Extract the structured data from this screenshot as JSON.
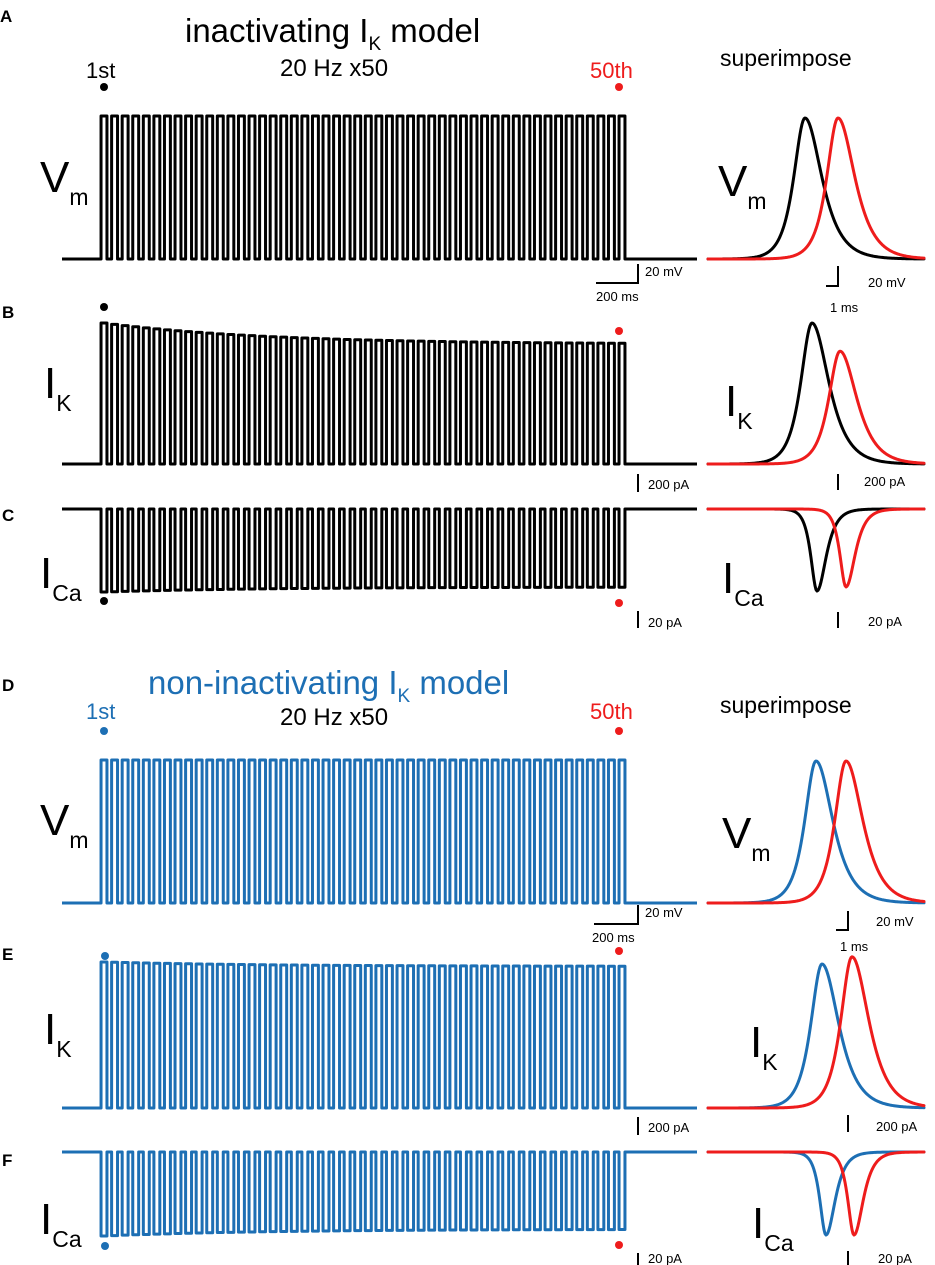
{
  "colors": {
    "black": "#000000",
    "red": "#ee1c1c",
    "blue": "#1d6fb4"
  },
  "chart_data": {
    "type": "line",
    "description_kind": "electrophysiology trace figure",
    "stimulus": {
      "frequency_hz": 20,
      "count": 50,
      "label": "20 Hz x50"
    },
    "sections": [
      {
        "id": "top",
        "title_main": "inactivating I",
        "title_sub": "K",
        "title_tail": " model",
        "stim_label": "20 Hz x50",
        "first_label": "1st",
        "last_label": "50th",
        "superimpose_label": "superimpose",
        "color": "#000000",
        "panels": [
          {
            "letter": "A",
            "var_main": "V",
            "var_sub": "m",
            "kind": "up",
            "amp_start": 1.0,
            "amp_end": 1.0,
            "scale_y": "20 mV",
            "scale_x": "200 ms",
            "sp_scale_y": "20 mV",
            "sp_scale_x": "1 ms"
          },
          {
            "letter": "B",
            "var_main": "I",
            "var_sub": "K",
            "kind": "up",
            "amp_start": 1.0,
            "amp_end": 0.85,
            "scale_y": "200 pA",
            "sp_scale_y": "200 pA",
            "sp_red_rel": 0.8
          },
          {
            "letter": "C",
            "var_main": "I",
            "var_sub": "Ca",
            "kind": "down",
            "amp_start": 1.0,
            "amp_end": 0.94,
            "scale_y": "20 pA",
            "sp_scale_y": "20 pA",
            "sp_red_rel": 0.95
          }
        ]
      },
      {
        "id": "bottom",
        "title_main": "non-inactivating I",
        "title_sub": "K",
        "title_tail": " model",
        "stim_label": "20 Hz x50",
        "first_label": "1st",
        "last_label": "50th",
        "superimpose_label": "superimpose",
        "color": "#1d6fb4",
        "panels": [
          {
            "letter": "D",
            "var_main": "V",
            "var_sub": "m",
            "kind": "up",
            "amp_start": 1.0,
            "amp_end": 1.0,
            "scale_y": "20 mV",
            "scale_x": "200 ms",
            "sp_scale_y": "20 mV",
            "sp_scale_x": "1 ms"
          },
          {
            "letter": "E",
            "var_main": "I",
            "var_sub": "K",
            "kind": "up",
            "amp_start": 1.0,
            "amp_end": 0.97,
            "scale_y": "200 pA",
            "sp_scale_y": "200 pA",
            "sp_red_rel": 1.05
          },
          {
            "letter": "F",
            "var_main": "I",
            "var_sub": "Ca",
            "kind": "down",
            "amp_start": 1.0,
            "amp_end": 0.92,
            "scale_y": "20 pA",
            "sp_scale_y": "20 pA",
            "sp_red_rel": 1.0
          }
        ]
      }
    ]
  }
}
